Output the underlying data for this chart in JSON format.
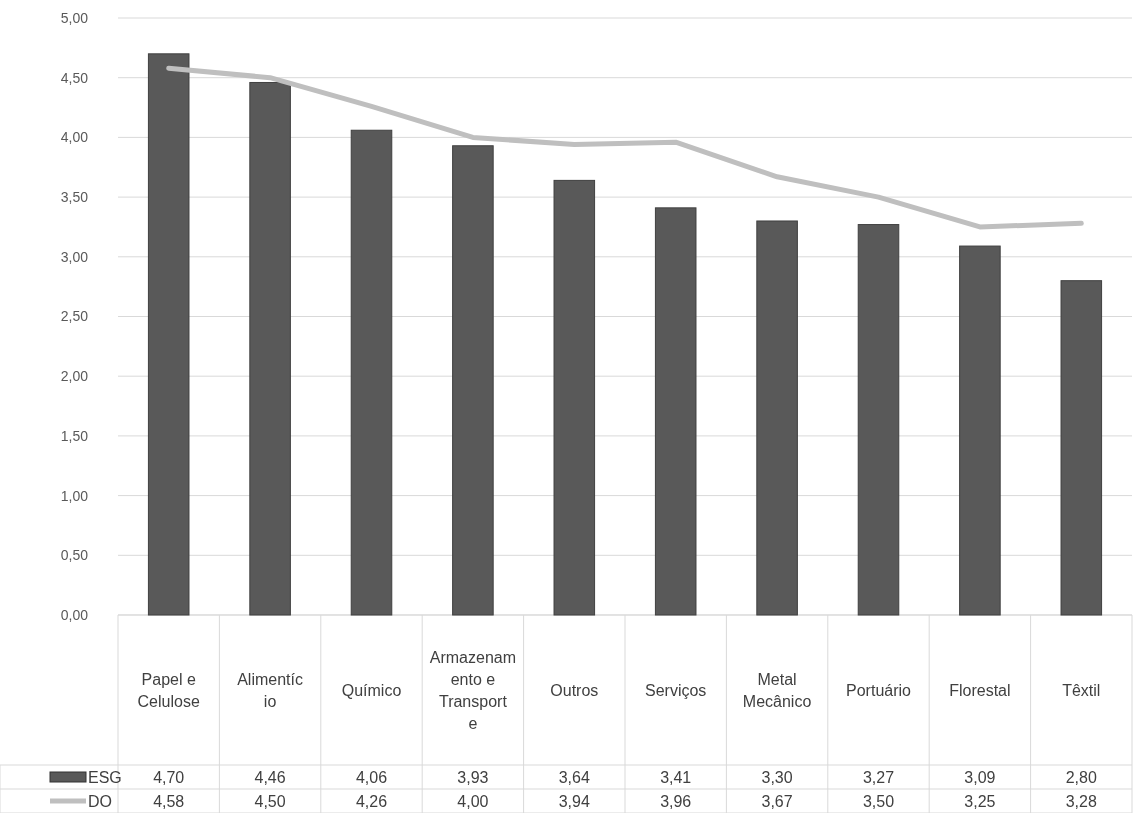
{
  "chart_data": {
    "type": "bar",
    "categories": [
      "Papel e Celulose",
      "Alimentício",
      "Químico",
      "Armazenamento e Transporte",
      "Outros",
      "Serviços",
      "Metal Mecânico",
      "Portuário",
      "Florestal",
      "Têxtil"
    ],
    "series": [
      {
        "name": "ESG",
        "color": "#595959",
        "values": [
          4.7,
          4.46,
          4.06,
          3.93,
          3.64,
          3.41,
          3.3,
          3.27,
          3.09,
          2.8
        ],
        "value_labels": [
          "4,70",
          "4,46",
          "4,06",
          "3,93",
          "3,64",
          "3,41",
          "3,30",
          "3,27",
          "3,09",
          "2,80"
        ]
      },
      {
        "name": "DO",
        "type": "line",
        "color": "#bfbfbf",
        "values": [
          4.58,
          4.5,
          4.26,
          4.0,
          3.94,
          3.96,
          3.67,
          3.5,
          3.25,
          3.28
        ],
        "value_labels": [
          "4,58",
          "4,50",
          "4,26",
          "4,00",
          "3,94",
          "3,96",
          "3,67",
          "3,50",
          "3,25",
          "3,28"
        ]
      }
    ],
    "ylim": [
      0,
      5
    ],
    "yticks": [
      {
        "value": 0,
        "label": "0,00"
      },
      {
        "value": 0.5,
        "label": "0,50"
      },
      {
        "value": 1,
        "label": "1,00"
      },
      {
        "value": 1.5,
        "label": "1,50"
      },
      {
        "value": 2,
        "label": "2,00"
      },
      {
        "value": 2.5,
        "label": "2,50"
      },
      {
        "value": 3,
        "label": "3,00"
      },
      {
        "value": 3.5,
        "label": "3,50"
      },
      {
        "value": 4,
        "label": "4,00"
      },
      {
        "value": 4.5,
        "label": "4,50"
      },
      {
        "value": 5,
        "label": "5,00"
      }
    ],
    "grid": "y",
    "legend": "bottom",
    "marker": "none",
    "line_style": "solid"
  }
}
